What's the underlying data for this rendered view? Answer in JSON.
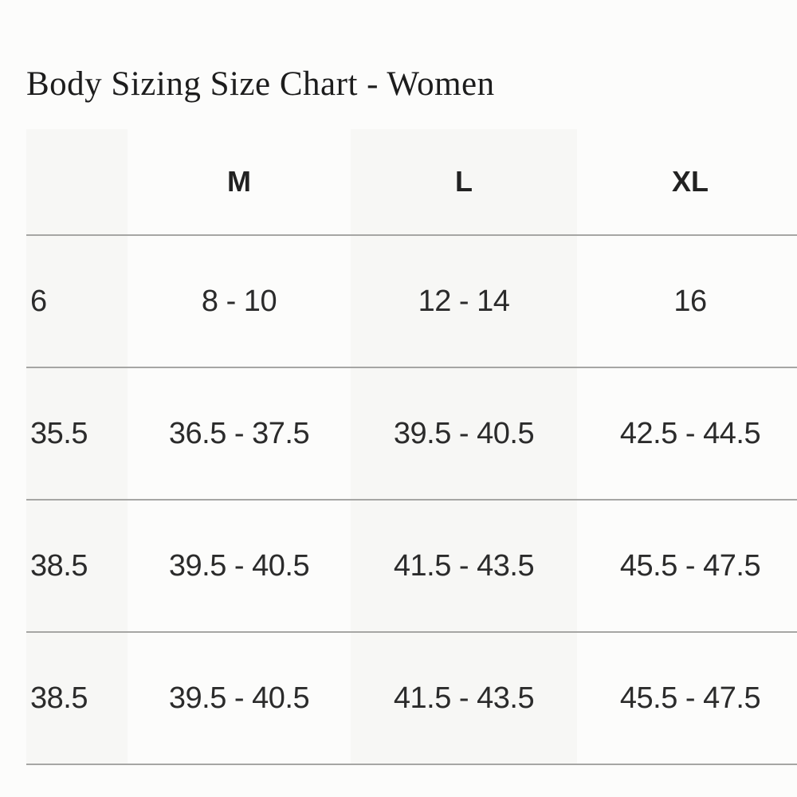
{
  "page": {
    "title": "Body Sizing Size Chart - Women"
  },
  "table": {
    "columns": [
      {
        "label": "",
        "shaded": true
      },
      {
        "label": "M",
        "shaded": false
      },
      {
        "label": "L",
        "shaded": true
      },
      {
        "label": "XL",
        "shaded": false
      }
    ],
    "rows": [
      [
        "6",
        "8 - 10",
        "12 - 14",
        "16"
      ],
      [
        "35.5",
        "36.5 - 37.5",
        "39.5 - 40.5",
        "42.5 - 44.5"
      ],
      [
        "38.5",
        "39.5 - 40.5",
        "41.5 - 43.5",
        "45.5 - 47.5"
      ],
      [
        "38.5",
        "39.5 - 40.5",
        "41.5 - 43.5",
        "45.5 - 47.5"
      ]
    ]
  },
  "colors": {
    "page_background": "#fcfcfb",
    "shaded_column": "#f7f7f5",
    "divider_line": "#a6a6a4",
    "table_text": "#2b2b2b",
    "title_text": "#1d1d1d"
  }
}
